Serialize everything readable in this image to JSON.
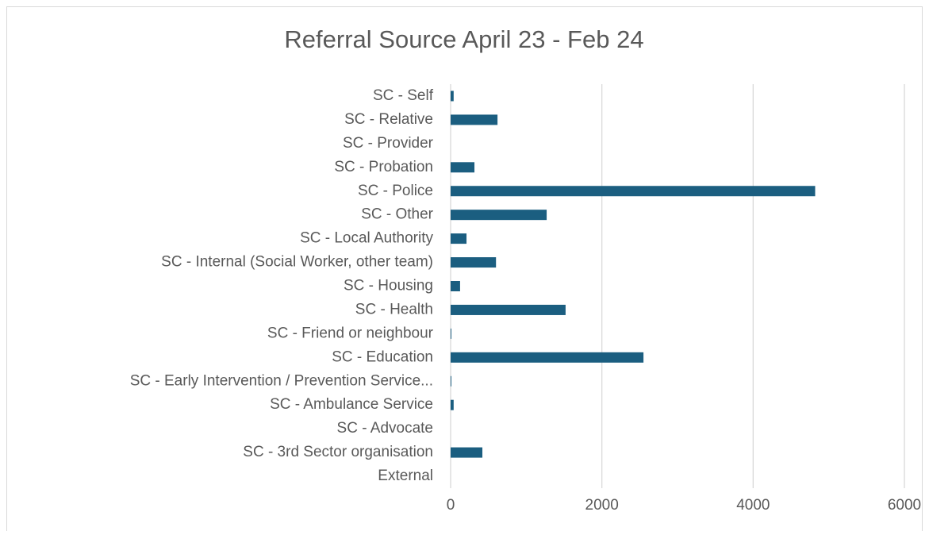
{
  "chart_data": {
    "type": "bar",
    "orientation": "horizontal",
    "title": "Referral Source April 23 - Feb 24",
    "categories": [
      "SC - Self",
      "SC - Relative",
      "SC - Provider",
      "SC - Probation",
      "SC - Police",
      "SC - Other",
      "SC - Local Authority",
      "SC - Internal (Social Worker, other team)",
      "SC - Housing",
      "SC - Health",
      "SC - Friend or neighbour",
      "SC - Education",
      "SC - Early Intervention / Prevention Service...",
      "SC - Ambulance Service",
      "SC - Advocate",
      "SC - 3rd Sector organisation",
      "External"
    ],
    "values": [
      40,
      620,
      0,
      315,
      4820,
      1270,
      210,
      600,
      125,
      1520,
      10,
      2550,
      10,
      40,
      0,
      420,
      0
    ],
    "color": "#1b5e80",
    "xlim": [
      0,
      6000
    ],
    "xticks": [
      0,
      2000,
      4000,
      6000
    ],
    "grid": true
  }
}
